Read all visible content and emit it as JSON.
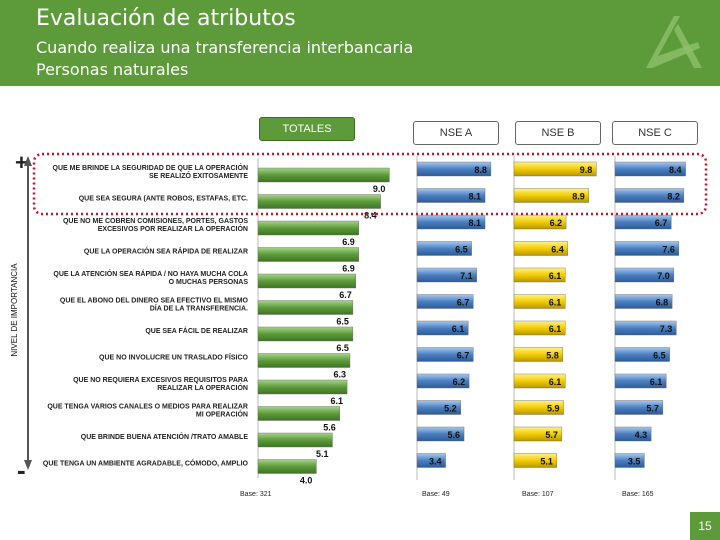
{
  "header": {
    "title": "Evaluación de atributos",
    "subtitle_line1": "Cuando realiza una transferencia interbancaria",
    "subtitle_line2": "Personas naturales"
  },
  "pills": {
    "totales": "TOTALES",
    "nse_a": "NSE A",
    "nse_b": "NSE  B",
    "nse_c": "NSE C"
  },
  "axis": {
    "plus": "+",
    "minus": "-",
    "ylabel": "NIVEL DE IMPORTANCIA"
  },
  "page_number": "15",
  "colors": {
    "green": "#5d9b3a",
    "blue": "#4a7fc1",
    "yellow": "#e8c200",
    "highlight": "#c8102e"
  },
  "chart_data": {
    "type": "bar",
    "orientation": "horizontal",
    "xlim": [
      0,
      10
    ],
    "categories": [
      "QUE ME BRINDE LA SEGURIDAD DE QUE LA OPERACIÓN SE REALIZÓ EXITOSAMENTE",
      "QUE SEA SEGURA (ANTE ROBOS, ESTAFAS, ETC.",
      "QUE NO ME COBREN COMISIONES, PORTES, GASTOS EXCESIVOS  POR REALIZAR LA OPERACIÓN",
      "QUE LA OPERACIÓN SEA RÁPIDA DE REALIZAR",
      "QUE LA ATENCIÓN SEA RÁPIDA / NO HAYA MUCHA COLA O MUCHAS PERSONAS",
      "QUE EL ABONO DEL DINERO SEA EFECTIVO EL MISMO DÍA  DE LA TRANSFERENCIA.",
      "QUE SEA FÁCIL DE REALIZAR",
      "QUE NO INVOLUCRE UN TRASLADO FÍSICO",
      "QUE NO REQUIERA EXCESIVOS REQUISITOS PARA REALIZAR LA OPERACIÓN",
      "QUE TENGA VARIOS CANALES O MEDIOS PARA REALIZAR MI OPERACIÓN",
      "QUE BRINDE BUENA ATENCIÓN /TRATO AMABLE",
      "QUE TENGA UN AMBIENTE AGRADABLE, CÓMODO, AMPLIO"
    ],
    "series": [
      {
        "name": "TOTALES",
        "base": "Base: 321",
        "values": [
          9.0,
          8.4,
          6.9,
          6.9,
          6.7,
          6.5,
          6.5,
          6.3,
          6.1,
          5.6,
          5.1,
          4.0
        ]
      },
      {
        "name": "NSE A",
        "base": "Base: 49",
        "values": [
          8.8,
          8.1,
          8.1,
          6.5,
          7.1,
          6.7,
          6.1,
          6.7,
          6.2,
          5.2,
          5.6,
          3.4
        ]
      },
      {
        "name": "NSE  B",
        "base": "Base: 107",
        "values": [
          9.8,
          8.9,
          6.2,
          6.4,
          6.1,
          6.1,
          6.1,
          5.8,
          6.1,
          5.9,
          5.7,
          5.1
        ]
      },
      {
        "name": "NSE C",
        "base": "Base: 165",
        "values": [
          8.4,
          8.2,
          6.7,
          7.6,
          7.0,
          6.8,
          7.3,
          6.5,
          6.1,
          5.7,
          4.3,
          3.5
        ]
      }
    ]
  }
}
